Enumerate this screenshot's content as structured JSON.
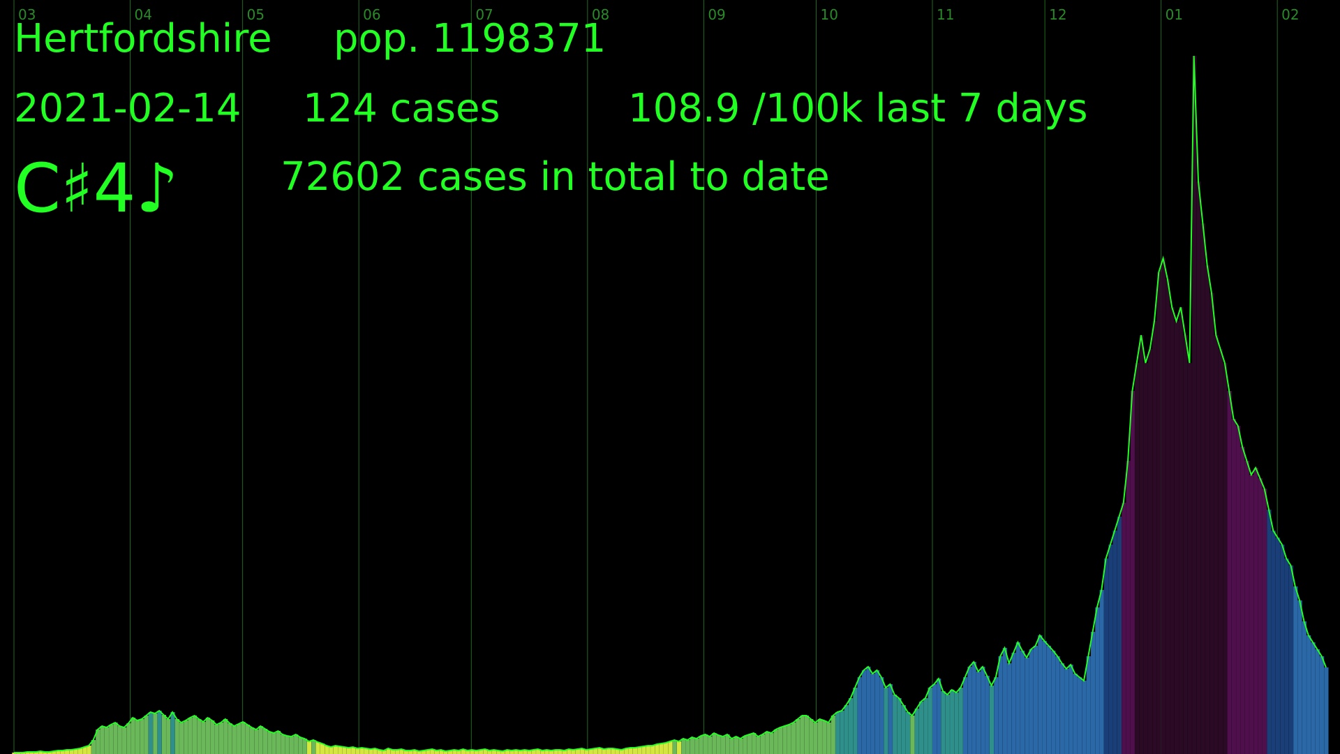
{
  "place": "Hertfordshire",
  "population_text": "pop. 1198371",
  "date": "2021-02-14",
  "cases_text": "124 cases",
  "rate_text": "108.9 /100k last 7 days",
  "note": "C♯4♪",
  "total_text": "72602 cases in total to date",
  "colors": {
    "text": "#22ff22",
    "gridline": "#1f6b1f",
    "monthlabel": "#2a8a2a",
    "line": "#22ff22"
  },
  "chart_data": {
    "type": "area",
    "x_axis_labels": [
      "03",
      "04",
      "05",
      "06",
      "07",
      "08",
      "09",
      "10",
      "11",
      "12",
      "01",
      "02"
    ],
    "month_start_days": [
      0,
      31,
      61,
      92,
      122,
      153,
      184,
      214,
      245,
      275,
      306,
      337
    ],
    "x_range_days": [
      0,
      350
    ],
    "y_range": [
      0,
      1080
    ],
    "grid": true,
    "series": [
      {
        "values": [
          2,
          2,
          2,
          3,
          3,
          3,
          4,
          3,
          3,
          4,
          5,
          5,
          6,
          6,
          7,
          8,
          10,
          12,
          20,
          35,
          40,
          38,
          42,
          45,
          40,
          38,
          44,
          52,
          48,
          50,
          55,
          60,
          58,
          62,
          56,
          50,
          60,
          50,
          45,
          48,
          52,
          55,
          50,
          46,
          52,
          48,
          42,
          45,
          50,
          44,
          40,
          43,
          46,
          42,
          38,
          35,
          40,
          36,
          32,
          30,
          33,
          28,
          26,
          25,
          28,
          24,
          22,
          18,
          20,
          17,
          15,
          12,
          10,
          12,
          11,
          10,
          9,
          10,
          8,
          9,
          8,
          7,
          8,
          6,
          5,
          8,
          6,
          6,
          7,
          5,
          5,
          6,
          4,
          5,
          6,
          7,
          5,
          6,
          4,
          5,
          6,
          5,
          7,
          5,
          6,
          5,
          6,
          7,
          5,
          6,
          5,
          4,
          6,
          5,
          6,
          5,
          6,
          5,
          6,
          7,
          5,
          6,
          5,
          6,
          6,
          5,
          7,
          6,
          7,
          8,
          6,
          7,
          8,
          9,
          7,
          8,
          8,
          7,
          6,
          8,
          9,
          9,
          10,
          11,
          12,
          12,
          14,
          15,
          16,
          18,
          20,
          18,
          22,
          20,
          24,
          22,
          26,
          28,
          25,
          30,
          27,
          25,
          28,
          22,
          25,
          22,
          26,
          28,
          30,
          25,
          28,
          32,
          30,
          35,
          38,
          40,
          42,
          45,
          50,
          55,
          55,
          50,
          45,
          50,
          48,
          45,
          55,
          60,
          62,
          70,
          80,
          95,
          110,
          120,
          125,
          115,
          120,
          110,
          95,
          100,
          85,
          80,
          70,
          60,
          55,
          65,
          75,
          80,
          95,
          100,
          108,
          90,
          85,
          92,
          88,
          95,
          110,
          125,
          132,
          118,
          125,
          112,
          98,
          110,
          140,
          152,
          130,
          145,
          160,
          148,
          138,
          150,
          155,
          170,
          162,
          155,
          148,
          140,
          130,
          122,
          128,
          115,
          110,
          105,
          140,
          175,
          210,
          235,
          280,
          300,
          320,
          340,
          360,
          420,
          520,
          560,
          600,
          560,
          580,
          620,
          690,
          710,
          680,
          640,
          620,
          640,
          600,
          560,
          1000,
          820,
          760,
          700,
          660,
          600,
          580,
          560,
          520,
          480,
          470,
          440,
          420,
          400,
          410,
          395,
          380,
          350,
          320,
          310,
          300,
          280,
          270,
          240,
          220,
          190,
          170,
          160,
          150,
          140,
          124
        ]
      }
    ]
  }
}
